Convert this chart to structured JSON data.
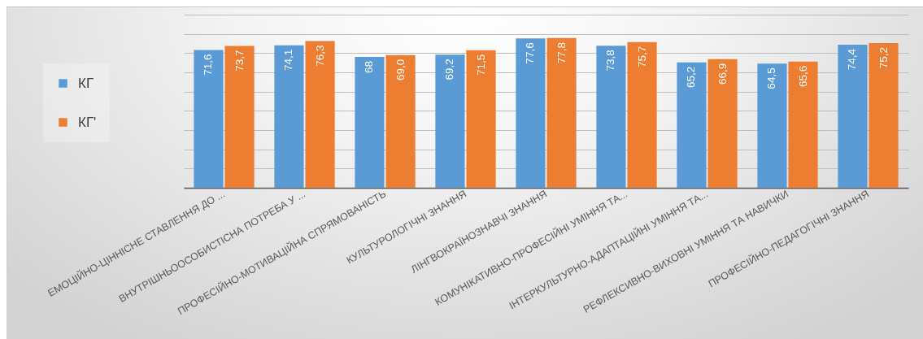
{
  "chart_data": {
    "type": "bar",
    "categories": [
      "ЕМОЦІЙНО-ЦІННІСНЕ СТАВЛЕННЯ ДО ...",
      "ВНУТРІШНЬООСОБИСТІСНА ПОТРЕБА У ...",
      "ПРОФЕСІЙНО-МОТИВАЦІЙНА СПРЯМОВАНІСТЬ",
      "КУЛЬТУРОЛОГІЧНІ ЗНАННЯ",
      "ЛІНГВОКРАЇНОЗНАВЧІ ЗНАННЯ",
      "КОМУНІКАТИВНО-ПРОФЕСІЙНІ УМІННЯ ТА...",
      "ІНТЕРКУЛЬТУРНО-АДАПТАЦІЙНІ УМІННЯ ТА...",
      "РЕФЛЕКСИВНО-ВИХОВНІ УМІННЯ ТА НАВИЧКИ",
      "ПРОФЕСІЙНО-ПЕДАГОГІЧНІ ЗНАННЯ"
    ],
    "series": [
      {
        "name": "КГ",
        "color": "#5b9bd5",
        "values": [
          71.6,
          74.1,
          68,
          69.2,
          77.6,
          73.8,
          65.2,
          64.5,
          74.4
        ],
        "value_labels": [
          "71,6",
          "74,1",
          "68",
          "69,2",
          "77,6",
          "73,8",
          "65,2",
          "64,5",
          "74,4"
        ]
      },
      {
        "name": "КГ'",
        "color": "#ed7d31",
        "values": [
          73.7,
          76.3,
          69.0,
          71.5,
          77.8,
          75.7,
          66.9,
          65.6,
          75.2
        ],
        "value_labels": [
          "73,7",
          "76,3",
          "69,0",
          "71,5",
          "77,8",
          "75,7",
          "66,9",
          "65,6",
          "75,2"
        ]
      }
    ],
    "ylim": [
      0,
      90
    ],
    "yticks": [
      {
        "value": 0,
        "label": null
      },
      {
        "value": 10,
        "label": null
      },
      {
        "value": 20,
        "label": null
      },
      {
        "value": 30,
        "label": null
      },
      {
        "value": 40,
        "label": null
      },
      {
        "value": 50,
        "label": null
      },
      {
        "value": 60,
        "label": null
      },
      {
        "value": 70,
        "label": null
      },
      {
        "value": 80,
        "label": null
      },
      {
        "value": 90,
        "label": null
      }
    ],
    "grid": "y",
    "legend": "left",
    "tick_labels": "x"
  }
}
